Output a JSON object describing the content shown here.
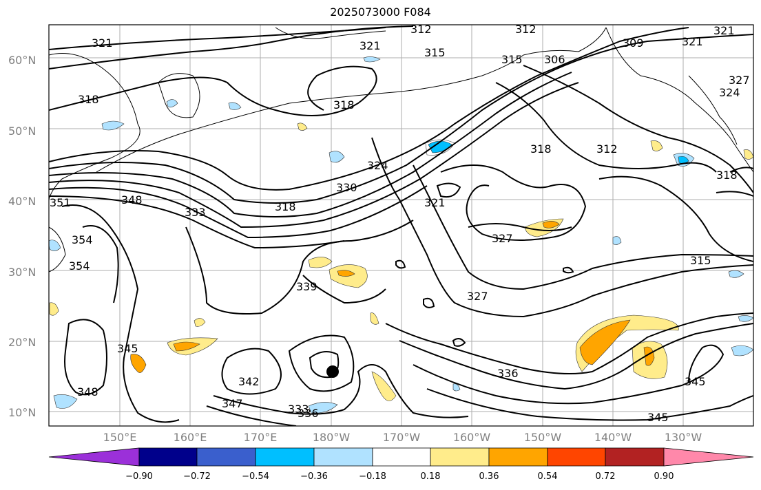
{
  "title": "2025073000 F084",
  "axes": {
    "lat_labels": [
      "60°N",
      "50°N",
      "40°N",
      "30°N",
      "20°N",
      "10°N"
    ],
    "lon_labels": [
      "150°E",
      "160°E",
      "170°E",
      "180°W",
      "170°W",
      "160°W",
      "150°W",
      "140°W",
      "130°W"
    ]
  },
  "colorbar": {
    "ticks": [
      "−0.90",
      "−0.72",
      "−0.54",
      "−0.36",
      "−0.18",
      "0.18",
      "0.36",
      "0.54",
      "0.72",
      "0.90"
    ],
    "colors": [
      "#9b30d9",
      "#00008b",
      "#3a5fcd",
      "#00bfff",
      "#b0e2ff",
      "#ffffff",
      "#ffec8b",
      "#ffa500",
      "#ff4500",
      "#b22222",
      "#ff88aa"
    ]
  },
  "contour_labels": [
    "321",
    "312",
    "312",
    "321",
    "321",
    "315",
    "315",
    "306",
    "309",
    "321",
    "324",
    "327",
    "318",
    "318",
    "318",
    "312",
    "318",
    "324",
    "330",
    "318",
    "333",
    "348",
    "351",
    "354",
    "354",
    "321",
    "327",
    "315",
    "339",
    "327",
    "345",
    "348",
    "342",
    "347",
    "333",
    "336",
    "336",
    "345",
    "345"
  ]
}
